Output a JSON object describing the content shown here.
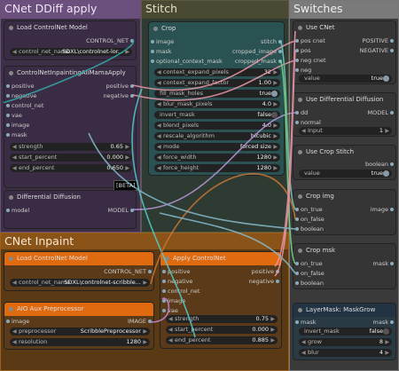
{
  "groups": {
    "cnet_ddiff": "CNet DDiff apply",
    "stitch": "Stitch",
    "switches": "Switches",
    "cnet_inpaint": "CNet Inpaint"
  },
  "load_cn_top": {
    "title": "Load ControlNet Model",
    "out": "CONTROL_NET",
    "w_label": "control_net_name",
    "w_value": "SDXL\\controlnet-lor..."
  },
  "cn_inpaint_alimama": {
    "title": "ControlNetInpaintingAliMamaApply",
    "inputs": [
      "positive",
      "negative",
      "control_net",
      "vae",
      "image",
      "mask"
    ],
    "outputs": [
      "positive",
      "negative"
    ],
    "widgets": [
      {
        "label": "strength",
        "value": "0.65"
      },
      {
        "label": "start_percent",
        "value": "0.000"
      },
      {
        "label": "end_percent",
        "value": "0.650"
      }
    ],
    "badge": "[BETA]"
  },
  "diff_diffusion_top": {
    "title": "Differential Diffusion",
    "in": "model",
    "out": "MODEL"
  },
  "crop": {
    "title": "Crop",
    "inputs": [
      "image",
      "mask",
      "optional_context_mask"
    ],
    "outputs": [
      "stitch",
      "cropped_image",
      "cropped_mask"
    ],
    "widgets": [
      {
        "label": "context_expand_pixels",
        "value": "32"
      },
      {
        "label": "context_expand_factor",
        "value": "1.00"
      },
      {
        "label": "fill_mask_holes",
        "value": "true",
        "toggle": true
      },
      {
        "label": "blur_mask_pixels",
        "value": "4.0"
      },
      {
        "label": "invert_mask",
        "value": "false",
        "toggle": true
      },
      {
        "label": "blend_pixels",
        "value": "4.0"
      },
      {
        "label": "rescale_algorithm",
        "value": "bicubic"
      },
      {
        "label": "mode",
        "value": "forced size"
      },
      {
        "label": "force_width",
        "value": "1280"
      },
      {
        "label": "force_height",
        "value": "1280"
      }
    ]
  },
  "use_cnet": {
    "title": "Use CNet",
    "inputs": [
      "pos cnet",
      "pos",
      "neg cnet",
      "neg"
    ],
    "outputs": [
      "POSITIVE",
      "NEGATIVE"
    ],
    "w_label": "value",
    "w_value": "true"
  },
  "use_dd": {
    "title": "Use Differential Diffusion",
    "inputs": [
      "dd",
      "normal"
    ],
    "out": "MODEL",
    "w_label": "Input",
    "w_value": "1"
  },
  "use_crop": {
    "title": "Use Crop Stitch",
    "out": "boolean",
    "w_label": "value",
    "w_value": "true"
  },
  "crop_img": {
    "title": "Crop img",
    "inputs": [
      "on_true",
      "on_false",
      "boolean"
    ],
    "out": "image"
  },
  "crop_msk": {
    "title": "Crop msk",
    "inputs": [
      "on_true",
      "on_false",
      "boolean"
    ],
    "out": "mask"
  },
  "load_cn_bottom": {
    "title": "Load ControlNet Model",
    "out": "CONTROL_NET",
    "w_label": "control_net_name",
    "w_value": "SDXL\\controlnet-scribble..."
  },
  "aio_aux": {
    "title": "AIO Aux Preprocessor",
    "in": "image",
    "out": "IMAGE",
    "widgets": [
      {
        "label": "preprocessor",
        "value": "ScribblePreprocessor"
      },
      {
        "label": "resolution",
        "value": "1280"
      }
    ]
  },
  "apply_cn": {
    "title": "Apply ControlNet",
    "inputs": [
      "positive",
      "negative",
      "control_net",
      "image",
      "vae"
    ],
    "outputs": [
      "positive",
      "negative"
    ],
    "widgets": [
      {
        "label": "strength",
        "value": "0.75"
      },
      {
        "label": "start_percent",
        "value": "0.000"
      },
      {
        "label": "end_percent",
        "value": "0.885"
      }
    ]
  },
  "mask_grow": {
    "title": "LayerMask: MaskGrow",
    "in": "mask",
    "out": "mask",
    "widgets": [
      {
        "label": "invert_mask",
        "value": "false",
        "toggle": true
      },
      {
        "label": "grow",
        "value": "8"
      },
      {
        "label": "blur",
        "value": "4"
      }
    ]
  },
  "colors": {
    "purple_group": "#4a3a5a",
    "stitch_group": "#1f4a4a",
    "switch_group": "#5a5a5a",
    "orange_group": "#6a3e0c",
    "orange_node": "#e06a10",
    "teal_node": "#2a5a5a"
  }
}
